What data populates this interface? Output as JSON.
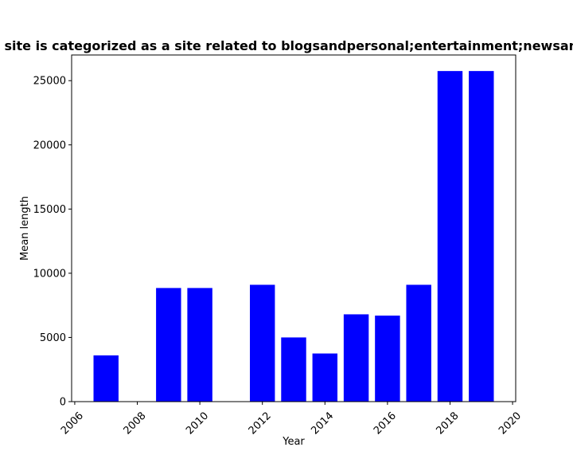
{
  "chart_data": {
    "type": "bar",
    "title": "Score vs Year of articles whose site is categorized as a site related to blogsandpersonal;entertainment;newsandmedia Mean length in prisma",
    "xlabel": "Year",
    "ylabel": "Mean length",
    "x": [
      2007,
      2009,
      2010,
      2012,
      2013,
      2014,
      2015,
      2016,
      2017,
      2018,
      2019
    ],
    "values": [
      3600,
      8850,
      8850,
      9100,
      5000,
      3750,
      6800,
      6700,
      9100,
      25750,
      25750
    ],
    "xlim": [
      2005.9,
      2020.1
    ],
    "ylim": [
      0,
      27000
    ],
    "xticks": [
      "2006",
      "2008",
      "2010",
      "2012",
      "2014",
      "2016",
      "2018",
      "2020"
    ],
    "yticks": [
      "0",
      "5000",
      "10000",
      "15000",
      "20000",
      "25000"
    ],
    "bar_color": "#0000ff",
    "grid": false,
    "legend": "none"
  }
}
